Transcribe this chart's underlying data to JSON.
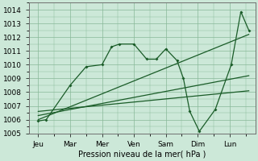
{
  "xlabel": "Pression niveau de la mer( hPa )",
  "bg_color": "#cce8d8",
  "grid_color": "#88b898",
  "line_color": "#1a5c28",
  "ylim": [
    1005,
    1014.5
  ],
  "yticks": [
    1005,
    1006,
    1007,
    1008,
    1009,
    1010,
    1011,
    1012,
    1013,
    1014
  ],
  "x_labels": [
    "Jeu",
    "Mar",
    "Mer",
    "Ven",
    "Sam",
    "Dim",
    "Lun"
  ],
  "x_positions": [
    0,
    1,
    2,
    3,
    4,
    5,
    6
  ],
  "xlim": [
    -0.3,
    6.8
  ],
  "jagged_x": [
    0,
    0.25,
    1.0,
    1.5,
    2.0,
    2.3,
    2.55,
    3.0,
    3.4,
    3.7,
    4.0,
    4.35,
    4.55,
    4.75,
    5.05,
    5.55,
    6.05,
    6.35,
    6.6
  ],
  "jagged_y": [
    1005.9,
    1006.0,
    1008.5,
    1009.85,
    1010.0,
    1011.3,
    1011.5,
    1011.5,
    1010.4,
    1010.4,
    1011.15,
    1010.3,
    1009.0,
    1006.6,
    1005.15,
    1006.75,
    1010.0,
    1013.85,
    1012.5
  ],
  "trend1_x": [
    0,
    6.6
  ],
  "trend1_y": [
    1006.0,
    1012.2
  ],
  "trend2_x": [
    0,
    6.6
  ],
  "trend2_y": [
    1006.3,
    1009.2
  ],
  "trend3_x": [
    0,
    6.6
  ],
  "trend3_y": [
    1006.6,
    1008.1
  ],
  "marker_x": [
    0,
    0.25,
    1.0,
    1.5,
    2.0,
    2.3,
    2.55,
    3.0,
    3.4,
    3.7,
    4.0,
    4.35,
    4.55,
    4.75,
    5.05,
    5.55,
    6.05,
    6.35,
    6.6
  ],
  "marker_y": [
    1005.9,
    1006.0,
    1008.5,
    1009.85,
    1010.0,
    1011.3,
    1011.5,
    1011.5,
    1010.4,
    1010.4,
    1011.15,
    1010.3,
    1009.0,
    1006.6,
    1005.15,
    1006.75,
    1010.0,
    1013.85,
    1012.5
  ]
}
